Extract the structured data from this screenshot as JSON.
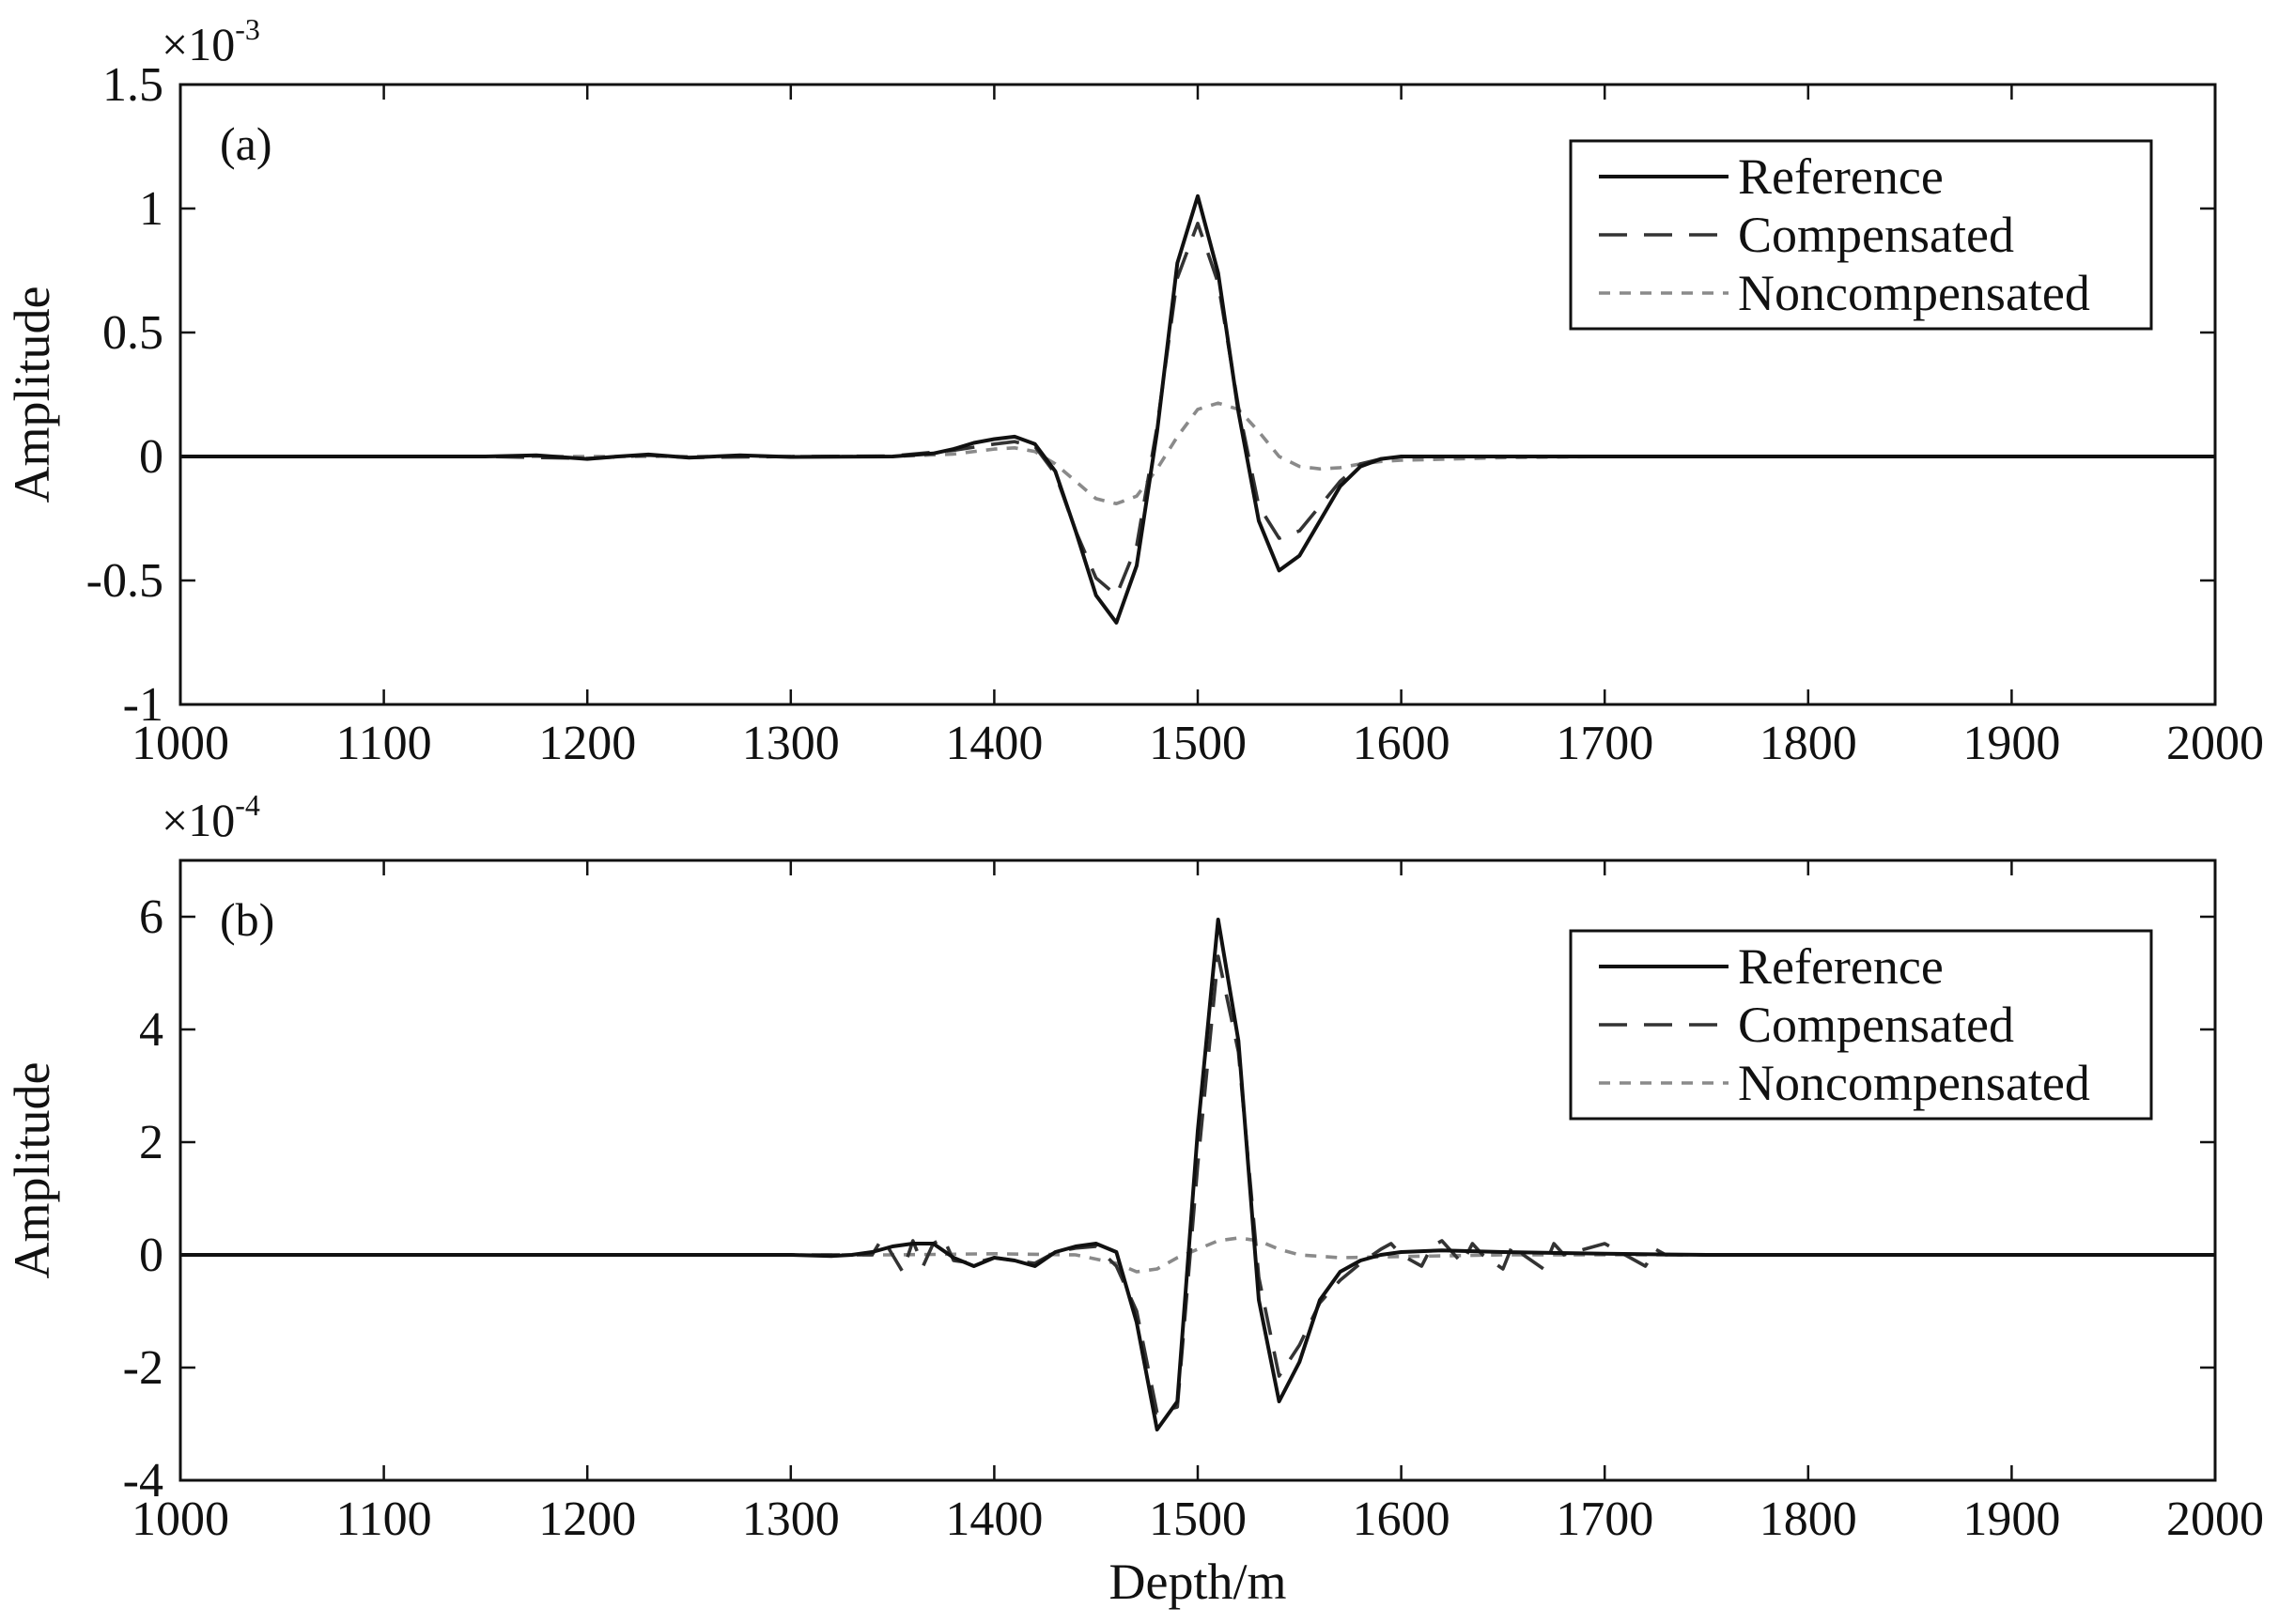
{
  "chart_data": [
    {
      "type": "line",
      "panel_label": "(a)",
      "xlabel": "",
      "ylabel": "Amplitude",
      "xlim": [
        1000,
        2000
      ],
      "ylim": [
        -1,
        1.5
      ],
      "x_ticks": [
        "1000",
        "1100",
        "1200",
        "1300",
        "1400",
        "1500",
        "1600",
        "1700",
        "1800",
        "1900",
        "2000"
      ],
      "y_ticks": [
        "-1",
        "-0.5",
        "0",
        "0.5",
        "1",
        "1.5"
      ],
      "y_exponent": {
        "base": "×10",
        "power": "-3"
      },
      "legend_position": "top-right",
      "series": [
        {
          "name": "Reference",
          "style": "solid",
          "color": "#111111",
          "x": [
            1000,
            1150,
            1175,
            1200,
            1215,
            1230,
            1250,
            1275,
            1300,
            1350,
            1370,
            1380,
            1390,
            1400,
            1410,
            1420,
            1430,
            1440,
            1450,
            1460,
            1470,
            1480,
            1490,
            1500,
            1510,
            1520,
            1530,
            1540,
            1550,
            1560,
            1570,
            1580,
            1590,
            1600,
            1620,
            1650,
            1700,
            2000
          ],
          "y": [
            0,
            0,
            0.005,
            -0.01,
            0,
            0.008,
            -0.005,
            0.005,
            -0.002,
            0,
            0.012,
            0.03,
            0.055,
            0.07,
            0.08,
            0.05,
            -0.06,
            -0.3,
            -0.56,
            -0.67,
            -0.44,
            0.1,
            0.78,
            1.05,
            0.74,
            0.18,
            -0.26,
            -0.46,
            -0.4,
            -0.26,
            -0.12,
            -0.04,
            -0.01,
            0,
            0,
            0,
            0,
            0
          ]
        },
        {
          "name": "Compensated",
          "style": "dashed",
          "color": "#333333",
          "x": [
            1000,
            1150,
            1200,
            1230,
            1250,
            1300,
            1350,
            1380,
            1400,
            1410,
            1420,
            1430,
            1440,
            1450,
            1460,
            1470,
            1480,
            1490,
            1500,
            1510,
            1520,
            1530,
            1540,
            1550,
            1560,
            1570,
            1580,
            1590,
            1600,
            1650,
            2000
          ],
          "y": [
            0,
            0,
            -0.008,
            0.005,
            -0.004,
            0,
            0.002,
            0.025,
            0.05,
            0.06,
            0.04,
            -0.07,
            -0.3,
            -0.49,
            -0.56,
            -0.36,
            0.12,
            0.72,
            0.94,
            0.7,
            0.2,
            -0.2,
            -0.33,
            -0.3,
            -0.2,
            -0.1,
            -0.03,
            -0.01,
            0,
            0,
            0
          ]
        },
        {
          "name": "Noncompensated",
          "style": "dotted",
          "color": "#8a8a8a",
          "x": [
            1000,
            1350,
            1380,
            1400,
            1410,
            1420,
            1430,
            1440,
            1450,
            1460,
            1470,
            1480,
            1490,
            1500,
            1510,
            1520,
            1530,
            1540,
            1550,
            1560,
            1570,
            1580,
            1590,
            1600,
            1650,
            1700,
            2000
          ],
          "y": [
            0,
            0,
            0.01,
            0.03,
            0.035,
            0.02,
            -0.03,
            -0.1,
            -0.17,
            -0.19,
            -0.16,
            -0.05,
            0.08,
            0.19,
            0.215,
            0.19,
            0.1,
            0,
            -0.04,
            -0.05,
            -0.045,
            -0.03,
            -0.02,
            -0.015,
            -0.005,
            0,
            0
          ]
        }
      ]
    },
    {
      "type": "line",
      "panel_label": "(b)",
      "xlabel": "Depth/m",
      "ylabel": "Amplitude",
      "xlim": [
        1000,
        2000
      ],
      "ylim": [
        -4,
        7
      ],
      "x_ticks": [
        "1000",
        "1100",
        "1200",
        "1300",
        "1400",
        "1500",
        "1600",
        "1700",
        "1800",
        "1900",
        "2000"
      ],
      "y_ticks": [
        "-4",
        "-2",
        "0",
        "2",
        "4",
        "6"
      ],
      "y_exponent": {
        "base": "×10",
        "power": "-4"
      },
      "legend_position": "top-right",
      "series": [
        {
          "name": "Reference",
          "style": "solid",
          "color": "#111111",
          "x": [
            1000,
            1300,
            1320,
            1330,
            1340,
            1350,
            1360,
            1370,
            1380,
            1390,
            1400,
            1410,
            1420,
            1430,
            1440,
            1450,
            1460,
            1470,
            1480,
            1490,
            1500,
            1510,
            1520,
            1530,
            1540,
            1550,
            1560,
            1570,
            1580,
            1590,
            1600,
            1620,
            1650,
            1700,
            1750,
            2000
          ],
          "y": [
            0,
            0,
            -0.02,
            0,
            0.05,
            0.15,
            0.2,
            0.2,
            -0.05,
            -0.2,
            -0.05,
            -0.1,
            -0.2,
            0.05,
            0.15,
            0.2,
            0.05,
            -1.2,
            -3.1,
            -2.6,
            2.2,
            5.95,
            3.8,
            -0.8,
            -2.6,
            -1.9,
            -0.8,
            -0.3,
            -0.1,
            0,
            0.05,
            0.08,
            0.05,
            0.02,
            0,
            0
          ]
        },
        {
          "name": "Compensated",
          "style": "dashed",
          "color": "#333333",
          "x": [
            1000,
            1300,
            1340,
            1345,
            1350,
            1355,
            1360,
            1365,
            1370,
            1375,
            1380,
            1390,
            1400,
            1410,
            1420,
            1430,
            1440,
            1450,
            1460,
            1470,
            1480,
            1490,
            1500,
            1510,
            1520,
            1530,
            1540,
            1550,
            1560,
            1570,
            1580,
            1590,
            1595,
            1600,
            1610,
            1615,
            1620,
            1630,
            1635,
            1640,
            1650,
            1655,
            1660,
            1670,
            1675,
            1680,
            1690,
            1700,
            1710,
            1720,
            1725,
            1730,
            1750,
            2000
          ],
          "y": [
            0,
            0,
            0,
            0.3,
            0,
            -0.3,
            0.25,
            -0.2,
            0.2,
            0.3,
            -0.1,
            -0.15,
            -0.05,
            -0.1,
            -0.15,
            0.05,
            0.12,
            0.15,
            -0.2,
            -1.0,
            -2.8,
            -2.7,
            1.6,
            5.3,
            3.6,
            -0.4,
            -2.15,
            -1.6,
            -0.85,
            -0.45,
            -0.15,
            0.1,
            0.2,
            0,
            -0.2,
            0.15,
            0.25,
            -0.15,
            0.2,
            0,
            -0.25,
            0.2,
            0,
            -0.25,
            0.2,
            0,
            0.1,
            0.2,
            0,
            -0.2,
            0.1,
            0,
            0,
            0
          ]
        },
        {
          "name": "Noncompensated",
          "style": "dotted",
          "color": "#8a8a8a",
          "x": [
            1000,
            1350,
            1400,
            1440,
            1460,
            1470,
            1480,
            1490,
            1500,
            1510,
            1520,
            1530,
            1540,
            1550,
            1570,
            1600,
            1650,
            1700,
            2000
          ],
          "y": [
            0,
            0,
            0.02,
            0.0,
            -0.15,
            -0.3,
            -0.25,
            -0.05,
            0.1,
            0.25,
            0.3,
            0.25,
            0.1,
            0.0,
            -0.05,
            -0.03,
            0,
            0,
            0
          ]
        }
      ]
    }
  ]
}
